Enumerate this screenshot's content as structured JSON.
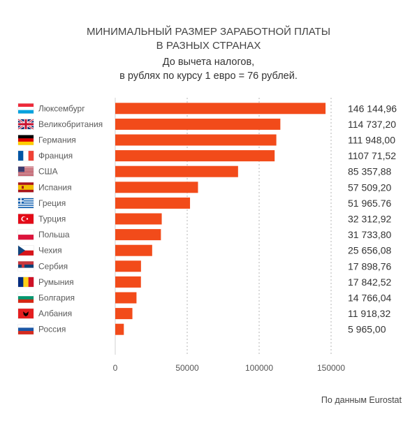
{
  "chart_data": {
    "type": "bar",
    "orientation": "horizontal",
    "title": [
      "МИНИМАЛЬНЫЙ РАЗМЕР ЗАРАБОТНОЙ ПЛАТЫ",
      "В РАЗНЫХ СТРАНАХ"
    ],
    "subtitle": [
      "До вычета налогов,",
      "в рублях по курсу 1 евро = 76 рублей."
    ],
    "categories": [
      "Люксембург",
      "Великобритания",
      "Германия",
      "Франция",
      "США",
      "Испания",
      "Греция",
      "Турция",
      "Польша",
      "Чехия",
      "Сербия",
      "Румыния",
      "Болгария",
      "Албания",
      "Россия"
    ],
    "values": [
      146144.96,
      114737.2,
      111948.0,
      110771.52,
      85357.88,
      57509.2,
      51965.76,
      32312.92,
      31733.8,
      25656.08,
      17898.76,
      17842.52,
      14766.04,
      11918.32,
      5965.0
    ],
    "value_labels": [
      "146 144,96",
      "114 737,20",
      "111 948,00",
      "1107 71,52",
      "85 357,88",
      "57 509,20",
      "51 965.76",
      "32 312,92",
      "31 733,80",
      "25 656,08",
      "17 898,76",
      "17 842,52",
      "14 766,04",
      "11 918,32",
      "5 965,00"
    ],
    "flag_icons": [
      "flag-luxembourg-icon",
      "flag-uk-icon",
      "flag-germany-icon",
      "flag-france-icon",
      "flag-usa-icon",
      "flag-spain-icon",
      "flag-greece-icon",
      "flag-turkey-icon",
      "flag-poland-icon",
      "flag-czechia-icon",
      "flag-serbia-icon",
      "flag-romania-icon",
      "flag-bulgaria-icon",
      "flag-albania-icon",
      "flag-russia-icon"
    ],
    "xticks": [
      0,
      50000,
      100000,
      150000
    ],
    "xtick_labels": [
      "0",
      "50000",
      "100000",
      "150000"
    ],
    "xlim": [
      0,
      150000
    ],
    "grid": "vertical dotted",
    "bar_color": "#f24b1a",
    "source": "По данным Eurostat"
  }
}
